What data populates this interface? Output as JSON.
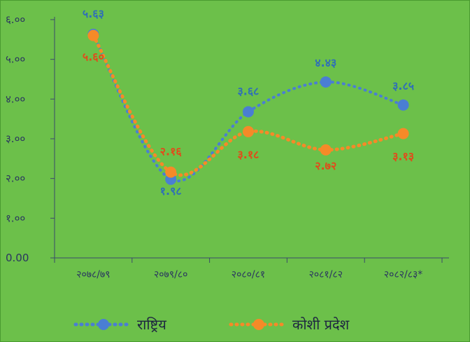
{
  "chart_data": {
    "type": "line",
    "categories": [
      "२०७८/७९",
      "२०७९/८०",
      "२०८०/८१",
      "२०८१/८२",
      "२०८२/८३*"
    ],
    "y_tick_labels": [
      "0.00",
      "१.००",
      "२.००",
      "३.००",
      "४.००",
      "५.००",
      "६.००"
    ],
    "ylim": [
      0,
      6
    ],
    "grid": false,
    "legend_position": "bottom",
    "series": [
      {
        "name": "राष्ट्रिय",
        "values": [
          5.63,
          1.98,
          3.68,
          4.43,
          3.85
        ],
        "labels": [
          "५.६३",
          "१.९८",
          "३.६८",
          "४.४३",
          "३.८५"
        ],
        "color": "#4a7ed3",
        "label_color": "#2f6fb7",
        "line_style": "dotted"
      },
      {
        "name": "कोशी प्रदेश",
        "values": [
          5.6,
          2.16,
          3.18,
          2.72,
          3.13
        ],
        "labels": [
          "५.६०",
          "२.१६",
          "३.१८",
          "२.७२",
          "३.१३"
        ],
        "color": "#f58a28",
        "label_color": "#e24a1a",
        "line_style": "dotted"
      }
    ]
  }
}
